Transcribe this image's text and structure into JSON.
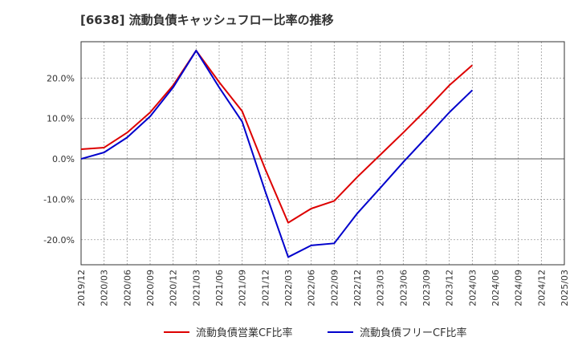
{
  "title": "[6638]  流動負債キャッシュフロー比率の推移",
  "chart_data": {
    "type": "line",
    "title": "[6638]  流動負債キャッシュフロー比率の推移",
    "x": [
      "2019/12",
      "2020/03",
      "2020/06",
      "2020/09",
      "2020/12",
      "2021/03",
      "2021/06",
      "2021/09",
      "2021/12",
      "2022/03",
      "2022/06",
      "2022/09",
      "2022/12",
      "2023/03",
      "2023/06",
      "2023/09",
      "2023/12",
      "2024/03",
      "2024/06",
      "2024/09",
      "2024/12",
      "2025/03"
    ],
    "yticks": [
      20.0,
      10.0,
      0.0,
      -10.0,
      -20.0
    ],
    "ytick_labels": [
      "20.0%",
      "10.0%",
      "0.0%",
      "-10.0%",
      "-20.0%"
    ],
    "ylim": [
      -26.2,
      29.0
    ],
    "grid": true,
    "legend_position": "bottom",
    "series": [
      {
        "name": "流動負債営業CF比率",
        "color": "#dd0000",
        "values": [
          2.4,
          2.8,
          6.5,
          11.5,
          18.2,
          26.8,
          19.0,
          11.8,
          -2.5,
          -15.8,
          -12.3,
          -10.4,
          -4.5,
          1.0,
          6.5,
          12.2,
          18.2,
          23.2,
          null,
          null,
          null,
          null
        ]
      },
      {
        "name": "流動負債フリーCF比率",
        "color": "#0000cc",
        "values": [
          0.0,
          1.6,
          5.3,
          10.5,
          17.7,
          26.8,
          17.7,
          9.2,
          -8.0,
          -24.3,
          -21.4,
          -20.9,
          -13.5,
          -7.2,
          -0.8,
          5.3,
          11.5,
          17.0,
          null,
          null,
          null,
          null
        ]
      }
    ]
  }
}
